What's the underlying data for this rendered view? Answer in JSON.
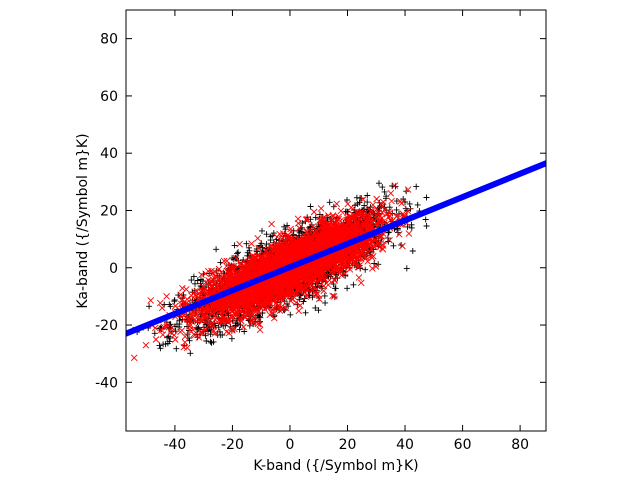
{
  "chart_data": {
    "type": "scatter",
    "title": "",
    "xlabel": "K-band ({/Symbol m}K)",
    "ylabel": "Ka-band ({/Symbol m}K)",
    "xlim": [
      -57,
      89
    ],
    "ylim": [
      -57,
      90
    ],
    "xticks": [
      -40,
      -20,
      0,
      20,
      40,
      60,
      80
    ],
    "yticks": [
      -40,
      -20,
      0,
      20,
      40,
      60,
      80
    ],
    "grid": false,
    "legend": "none",
    "series": [
      {
        "marker": "plus",
        "color": "#000000",
        "distribution": {
          "n": 2600,
          "x_mean": 0,
          "x_std": 17,
          "x_range": [
            -55,
            48
          ],
          "slope": 0.45,
          "intercept": 0,
          "residual_std": 6
        }
      },
      {
        "marker": "cross",
        "color": "#ff0000",
        "distribution": {
          "n": 3800,
          "x_mean": 0,
          "x_std": 15,
          "x_range": [
            -57,
            42
          ],
          "slope": 0.45,
          "intercept": 0,
          "residual_std": 4.8
        }
      },
      {
        "marker": "dot",
        "color": "#0000ff",
        "points": [
          [
            -57,
            -23.0
          ],
          [
            89,
            36.5
          ]
        ],
        "type": "line"
      }
    ]
  }
}
